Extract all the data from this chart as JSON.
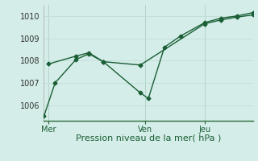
{
  "xlabel": "Pression niveau de la mer( hPa )",
  "background_color": "#d4ede8",
  "grid_color": "#c0ddd8",
  "line_color": "#1a5e35",
  "spine_color": "#2d6b3a",
  "xlim": [
    0,
    13
  ],
  "ylim": [
    1005.3,
    1010.5
  ],
  "yticks": [
    1006,
    1007,
    1008,
    1009,
    1010
  ],
  "x_day_labels": [
    [
      0.3,
      "Mer"
    ],
    [
      6.3,
      "Ven"
    ],
    [
      10.0,
      "Jeu"
    ]
  ],
  "x_vlines": [
    0.3,
    6.3,
    10.0
  ],
  "series1_x": [
    0.0,
    0.7,
    2.0,
    2.8,
    3.7,
    6.0,
    6.5,
    7.5,
    8.5,
    10.0,
    11.0,
    12.0,
    13.0
  ],
  "series1_y": [
    1005.5,
    1007.0,
    1008.05,
    1008.3,
    1007.95,
    1006.55,
    1006.3,
    1008.6,
    1009.1,
    1009.7,
    1009.9,
    1010.0,
    1010.15
  ],
  "series2_x": [
    0.3,
    2.0,
    2.8,
    3.7,
    6.0,
    10.0,
    11.0,
    12.0,
    13.0
  ],
  "series2_y": [
    1007.85,
    1008.2,
    1008.35,
    1007.95,
    1007.8,
    1009.65,
    1009.82,
    1009.95,
    1010.05
  ],
  "marker": "D",
  "marker_size": 2.5,
  "linewidth": 1.0,
  "xlabel_fontsize": 8,
  "tick_fontsize": 7
}
